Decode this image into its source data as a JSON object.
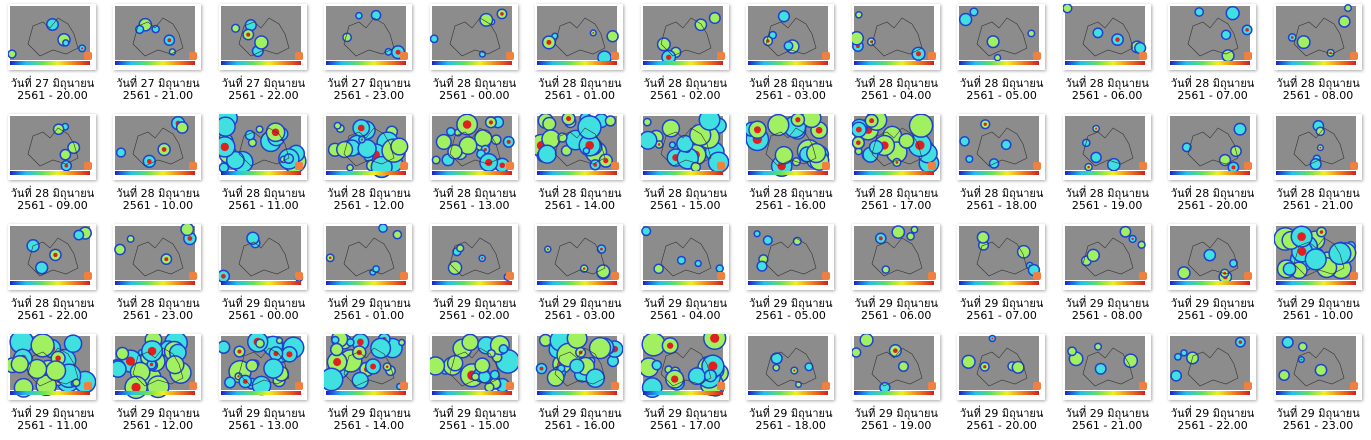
{
  "files": [
    {
      "line1": "วันที่ 27 มิถุนายน",
      "line2": "2561 - 20.00"
    },
    {
      "line1": "วันที่ 27 มิถุนายน",
      "line2": "2561 - 21.00"
    },
    {
      "line1": "วันที่ 27 มิถุนายน",
      "line2": "2561 - 22.00"
    },
    {
      "line1": "วันที่ 27 มิถุนายน",
      "line2": "2561 - 23.00"
    },
    {
      "line1": "วันที่ 28 มิถุนายน",
      "line2": "2561 - 00.00"
    },
    {
      "line1": "วันที่ 28 มิถุนายน",
      "line2": "2561 - 01.00"
    },
    {
      "line1": "วันที่ 28 มิถุนายน",
      "line2": "2561 - 02.00"
    },
    {
      "line1": "วันที่ 28 มิถุนายน",
      "line2": "2561 - 03.00"
    },
    {
      "line1": "วันที่ 28 มิถุนายน",
      "line2": "2561 - 04.00"
    },
    {
      "line1": "วันที่ 28 มิถุนายน",
      "line2": "2561 - 05.00"
    },
    {
      "line1": "วันที่ 28 มิถุนายน",
      "line2": "2561 - 06.00"
    },
    {
      "line1": "วันที่ 28 มิถุนายน",
      "line2": "2561 - 07.00"
    },
    {
      "line1": "วันที่ 28 มิถุนายน",
      "line2": "2561 - 08.00"
    },
    {
      "line1": "วันที่ 28 มิถุนายน",
      "line2": "2561 - 09.00"
    },
    {
      "line1": "วันที่ 28 มิถุนายน",
      "line2": "2561 - 10.00"
    },
    {
      "line1": "วันที่ 28 มิถุนายน",
      "line2": "2561 - 11.00"
    },
    {
      "line1": "วันที่ 28 มิถุนายน",
      "line2": "2561 - 12.00"
    },
    {
      "line1": "วันที่ 28 มิถุนายน",
      "line2": "2561 - 13.00"
    },
    {
      "line1": "วันที่ 28 มิถุนายน",
      "line2": "2561 - 14.00"
    },
    {
      "line1": "วันที่ 28 มิถุนายน",
      "line2": "2561 - 15.00"
    },
    {
      "line1": "วันที่ 28 มิถุนายน",
      "line2": "2561 - 16.00"
    },
    {
      "line1": "วันที่ 28 มิถุนายน",
      "line2": "2561 - 17.00"
    },
    {
      "line1": "วันที่ 28 มิถุนายน",
      "line2": "2561 - 18.00"
    },
    {
      "line1": "วันที่ 28 มิถุนายน",
      "line2": "2561 - 19.00"
    },
    {
      "line1": "วันที่ 28 มิถุนายน",
      "line2": "2561 - 20.00"
    },
    {
      "line1": "วันที่ 28 มิถุนายน",
      "line2": "2561 - 21.00"
    },
    {
      "line1": "วันที่ 28 มิถุนายน",
      "line2": "2561 - 22.00"
    },
    {
      "line1": "วันที่ 28 มิถุนายน",
      "line2": "2561 - 23.00"
    },
    {
      "line1": "วันที่ 29 มิถุนายน",
      "line2": "2561 - 00.00"
    },
    {
      "line1": "วันที่ 29 มิถุนายน",
      "line2": "2561 - 01.00"
    },
    {
      "line1": "วันที่ 29 มิถุนายน",
      "line2": "2561 - 02.00"
    },
    {
      "line1": "วันที่ 29 มิถุนายน",
      "line2": "2561 - 03.00"
    },
    {
      "line1": "วันที่ 29 มิถุนายน",
      "line2": "2561 - 04.00"
    },
    {
      "line1": "วันที่ 29 มิถุนายน",
      "line2": "2561 - 05.00"
    },
    {
      "line1": "วันที่ 29 มิถุนายน",
      "line2": "2561 - 06.00"
    },
    {
      "line1": "วันที่ 29 มิถุนายน",
      "line2": "2561 - 07.00"
    },
    {
      "line1": "วันที่ 29 มิถุนายน",
      "line2": "2561 - 08.00"
    },
    {
      "line1": "วันที่ 29 มิถุนายน",
      "line2": "2561 - 09.00"
    },
    {
      "line1": "วันที่ 29 มิถุนายน",
      "line2": "2561 - 10.00"
    },
    {
      "line1": "วันที่ 29 มิถุนายน",
      "line2": "2561 - 11.00"
    },
    {
      "line1": "วันที่ 29 มิถุนายน",
      "line2": "2561 - 12.00"
    },
    {
      "line1": "วันที่ 29 มิถุนายน",
      "line2": "2561 - 13.00"
    },
    {
      "line1": "วันที่ 29 มิถุนายน",
      "line2": "2561 - 14.00"
    },
    {
      "line1": "วันที่ 29 มิถุนายน",
      "line2": "2561 - 15.00"
    },
    {
      "line1": "วันที่ 29 มิถุนายน",
      "line2": "2561 - 16.00"
    },
    {
      "line1": "วันที่ 29 มิถุนายน",
      "line2": "2561 - 17.00"
    },
    {
      "line1": "วันที่ 29 มิถุนายน",
      "line2": "2561 - 18.00"
    },
    {
      "line1": "วันที่ 29 มิถุนายน",
      "line2": "2561 - 19.00"
    },
    {
      "line1": "วันที่ 29 มิถุนายน",
      "line2": "2561 - 20.00"
    },
    {
      "line1": "วันที่ 29 มิถุนายน",
      "line2": "2561 - 21.00"
    },
    {
      "line1": "วันที่ 29 มิถุนายน",
      "line2": "2561 - 22.00"
    },
    {
      "line1": "วันที่ 29 มิถุนายน",
      "line2": "2561 - 23.00"
    }
  ]
}
